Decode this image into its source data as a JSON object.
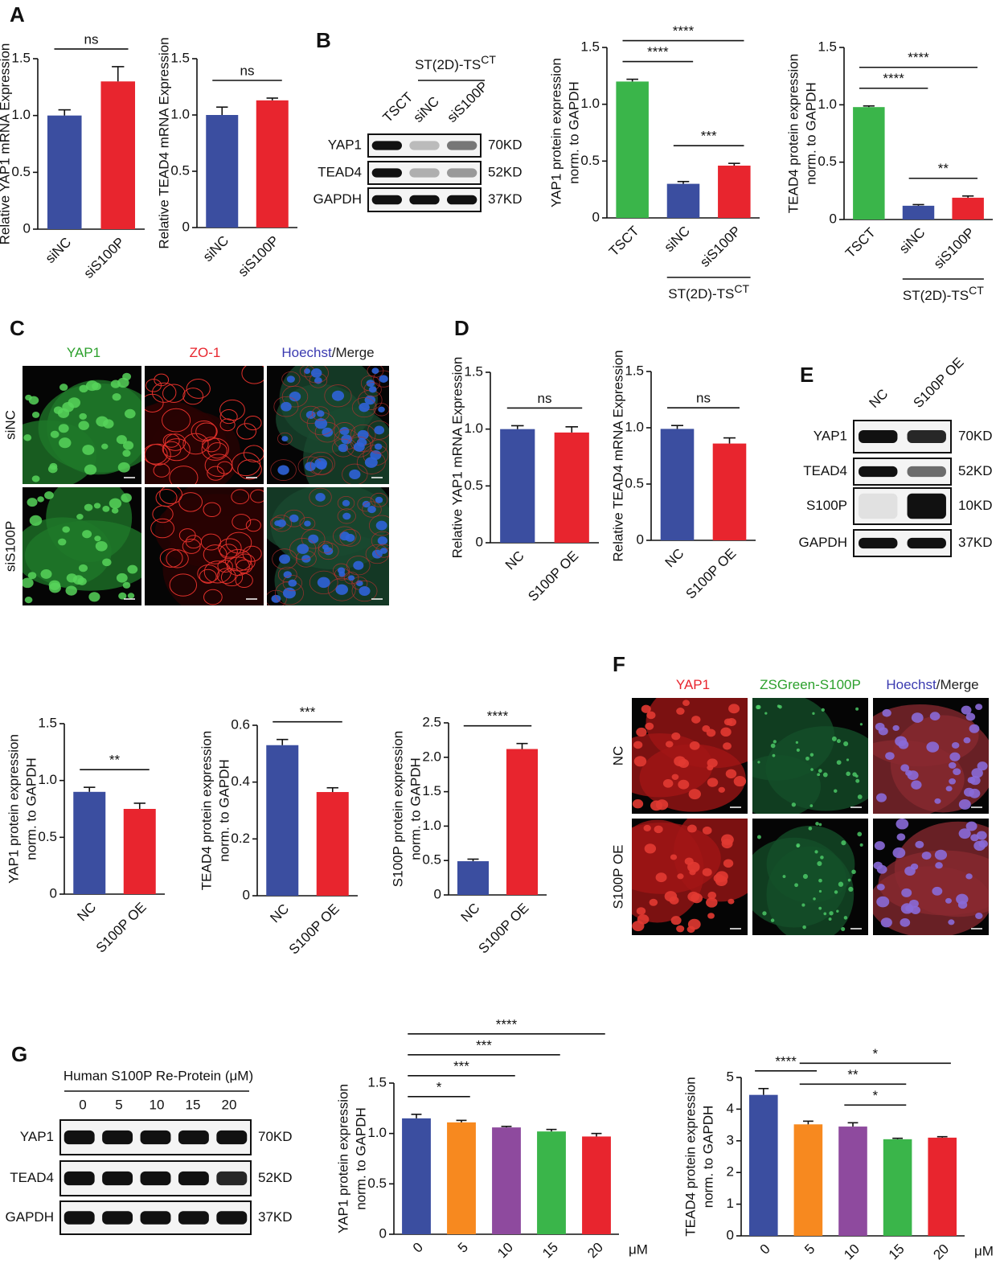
{
  "panel_labels": [
    "A",
    "B",
    "C",
    "D",
    "E",
    "F",
    "G"
  ],
  "chart_data": [
    {
      "type": "bar",
      "y_label": [
        "Relative YAP1 mRNA Expression"
      ],
      "categories": [
        "siNC",
        "siS100P"
      ],
      "values": [
        1.0,
        1.3
      ],
      "errors": [
        0.05,
        0.13
      ],
      "colors": [
        "#3b4ea0",
        "#e8252e"
      ],
      "ylim": [
        0,
        1.5
      ],
      "yticks": [
        0,
        0.5,
        {
          "value": 1,
          "label": "1.0"
        },
        1.5
      ],
      "significance": [
        {
          "pair": [
            "siNC",
            "siS100P"
          ],
          "label": "ns"
        }
      ]
    },
    {
      "type": "bar",
      "y_label": [
        "Relative TEAD4 mRNA Expression"
      ],
      "categories": [
        "siNC",
        "siS100P"
      ],
      "values": [
        1.0,
        1.13
      ],
      "errors": [
        0.07,
        0.02
      ],
      "colors": [
        "#3b4ea0",
        "#e8252e"
      ],
      "ylim": [
        0,
        1.5
      ],
      "yticks": [
        0,
        0.5,
        {
          "value": 1,
          "label": "1.0"
        },
        1.5
      ],
      "significance": [
        {
          "pair": [
            "siNC",
            "siS100P"
          ],
          "label": "ns"
        }
      ]
    },
    {
      "type": "bar",
      "y_label": [
        "YAP1 protein expression",
        "norm. to GAPDH"
      ],
      "categories": [
        "TSCT",
        "siNC",
        "siS100P"
      ],
      "values": [
        1.2,
        0.3,
        0.46
      ],
      "errors": [
        0.02,
        0.02,
        0.02
      ],
      "colors": [
        "#3ab54a",
        "#3b4ea0",
        "#e8252e"
      ],
      "ylim": [
        0,
        1.5
      ],
      "yticks": [
        0,
        0.5,
        {
          "value": 1,
          "label": "1.0"
        },
        1.5
      ],
      "significance": [
        {
          "pair": [
            "TSCT",
            "siNC"
          ],
          "label": "****"
        },
        {
          "pair": [
            "TSCT",
            "siS100P"
          ],
          "label": "****"
        },
        {
          "pair": [
            "siNC",
            "siS100P"
          ],
          "label": "***"
        }
      ],
      "group_label": {
        "text": "ST(2D)-TS",
        "sup": "CT",
        "span": [
          "siNC",
          "siS100P"
        ]
      }
    },
    {
      "type": "bar",
      "y_label": [
        "TEAD4 protein expression",
        "norm. to GAPDH"
      ],
      "categories": [
        "TSCT",
        "siNC",
        "siS100P"
      ],
      "values": [
        0.98,
        0.12,
        0.19
      ],
      "errors": [
        0.01,
        0.01,
        0.015
      ],
      "colors": [
        "#3ab54a",
        "#3b4ea0",
        "#e8252e"
      ],
      "ylim": [
        0,
        1.5
      ],
      "yticks": [
        0,
        0.5,
        {
          "value": 1,
          "label": "1.0"
        },
        1.5
      ],
      "significance": [
        {
          "pair": [
            "TSCT",
            "siNC"
          ],
          "label": "****"
        },
        {
          "pair": [
            "TSCT",
            "siS100P"
          ],
          "label": "****"
        },
        {
          "pair": [
            "siNC",
            "siS100P"
          ],
          "label": "**"
        }
      ],
      "group_label": {
        "text": "ST(2D)-TS",
        "sup": "CT",
        "span": [
          "siNC",
          "siS100P"
        ]
      }
    },
    {
      "type": "bar",
      "y_label": [
        "Relative YAP1 mRNA Expression"
      ],
      "categories": [
        "NC",
        "S100P OE"
      ],
      "values": [
        1.0,
        0.97
      ],
      "errors": [
        0.03,
        0.05
      ],
      "colors": [
        "#3b4ea0",
        "#e8252e"
      ],
      "ylim": [
        0,
        1.5
      ],
      "yticks": [
        0,
        0.5,
        {
          "value": 1,
          "label": "1.0"
        },
        1.5
      ],
      "significance": [
        {
          "pair": [
            "NC",
            "S100P OE"
          ],
          "label": "ns"
        }
      ]
    },
    {
      "type": "bar",
      "y_label": [
        "Relative TEAD4 mRNA Expression"
      ],
      "categories": [
        "NC",
        "S100P OE"
      ],
      "values": [
        0.99,
        0.86
      ],
      "errors": [
        0.03,
        0.05
      ],
      "colors": [
        "#3b4ea0",
        "#e8252e"
      ],
      "ylim": [
        0,
        1.5
      ],
      "yticks": [
        0,
        0.5,
        {
          "value": 1,
          "label": "1.0"
        },
        1.5
      ],
      "significance": [
        {
          "pair": [
            "NC",
            "S100P OE"
          ],
          "label": "ns"
        }
      ]
    },
    {
      "type": "bar",
      "y_label": [
        "YAP1 protein expression",
        "norm. to GAPDH"
      ],
      "categories": [
        "NC",
        "S100P OE"
      ],
      "values": [
        0.9,
        0.75
      ],
      "errors": [
        0.04,
        0.05
      ],
      "colors": [
        "#3b4ea0",
        "#e8252e"
      ],
      "ylim": [
        0,
        1.5
      ],
      "yticks": [
        0,
        0.5,
        {
          "value": 1,
          "label": "1.0"
        },
        1.5
      ],
      "significance": [
        {
          "pair": [
            "NC",
            "S100P OE"
          ],
          "label": "**"
        }
      ]
    },
    {
      "type": "bar",
      "y_label": [
        "TEAD4 protein expression",
        "norm. to GAPDH"
      ],
      "categories": [
        "NC",
        "S100P OE"
      ],
      "values": [
        0.53,
        0.365
      ],
      "errors": [
        0.02,
        0.015
      ],
      "colors": [
        "#3b4ea0",
        "#e8252e"
      ],
      "ylim": [
        0,
        0.6
      ],
      "yticks": [
        0,
        0.2,
        0.4,
        0.6
      ],
      "significance": [
        {
          "pair": [
            "NC",
            "S100P OE"
          ],
          "label": "***"
        }
      ]
    },
    {
      "type": "bar",
      "y_label": [
        "S100P protein expression",
        "norm. to GAPDH"
      ],
      "categories": [
        "NC",
        "S100P OE"
      ],
      "values": [
        0.49,
        2.12
      ],
      "errors": [
        0.03,
        0.08
      ],
      "colors": [
        "#3b4ea0",
        "#e8252e"
      ],
      "ylim": [
        0,
        2.5
      ],
      "yticks": [
        0,
        0.5,
        {
          "value": 1,
          "label": "1.0"
        },
        1.5,
        {
          "value": 2,
          "label": "2.0"
        },
        2.5
      ],
      "significance": [
        {
          "pair": [
            "NC",
            "S100P OE"
          ],
          "label": "****"
        }
      ]
    },
    {
      "type": "bar",
      "y_label": [
        "YAP1 protein expression",
        "norm. to GAPDH"
      ],
      "categories": [
        "0",
        "5",
        "10",
        "15",
        "20"
      ],
      "x_unit": "μM",
      "values": [
        1.15,
        1.11,
        1.06,
        1.02,
        0.97
      ],
      "errors": [
        0.04,
        0.02,
        0.01,
        0.02,
        0.03
      ],
      "colors": [
        "#3b4ea0",
        "#f7891f",
        "#8e4a9e",
        "#3ab54a",
        "#e8252e"
      ],
      "ylim": [
        0,
        1.5
      ],
      "yticks": [
        0,
        0.5,
        {
          "value": 1,
          "label": "1.0"
        },
        1.5
      ],
      "significance": [
        {
          "pair": [
            "0",
            "5"
          ],
          "label": "*"
        },
        {
          "pair": [
            "0",
            "10"
          ],
          "label": "***"
        },
        {
          "pair": [
            "0",
            "15"
          ],
          "label": "***"
        },
        {
          "pair": [
            "0",
            "20"
          ],
          "label": "****"
        }
      ]
    },
    {
      "type": "bar",
      "y_label": [
        "TEAD4 protein expression",
        "norm. to GAPDH"
      ],
      "categories": [
        "0",
        "5",
        "10",
        "15",
        "20"
      ],
      "x_unit": "μM",
      "values": [
        4.45,
        3.52,
        3.45,
        3.05,
        3.1
      ],
      "errors": [
        0.2,
        0.1,
        0.12,
        0.03,
        0.03
      ],
      "colors": [
        "#3b4ea0",
        "#f7891f",
        "#8e4a9e",
        "#3ab54a",
        "#e8252e"
      ],
      "ylim": [
        0,
        5
      ],
      "yticks": [
        0,
        1,
        2,
        3,
        4,
        5
      ],
      "significance": [
        {
          "pair": [
            "0",
            "5"
          ],
          "label": "****"
        },
        {
          "pair": [
            "5",
            "20"
          ],
          "label": "*"
        },
        {
          "pair": [
            "5",
            "15"
          ],
          "label": "**"
        },
        {
          "pair": [
            "10",
            "15"
          ],
          "label": "*"
        }
      ]
    }
  ],
  "blots": [
    {
      "group_label": {
        "text": "ST(2D)-TS",
        "sup": "CT"
      },
      "lanes": [
        "TSCT",
        "siNC",
        "siS100P"
      ],
      "rows": [
        {
          "protein": "YAP1",
          "size": "70KD"
        },
        {
          "protein": "TEAD4",
          "size": "52KD"
        },
        {
          "protein": "GAPDH",
          "size": "37KD"
        }
      ]
    },
    {
      "lanes": [
        "NC",
        "S100P OE"
      ],
      "rows": [
        {
          "protein": "YAP1",
          "size": "70KD"
        },
        {
          "protein": "TEAD4",
          "size": "52KD"
        },
        {
          "protein": "S100P",
          "size": "10KD"
        },
        {
          "protein": "GAPDH",
          "size": "37KD"
        }
      ]
    },
    {
      "title": "Human S100P Re-Protein (μM)",
      "lanes": [
        "0",
        "5",
        "10",
        "15",
        "20"
      ],
      "rows": [
        {
          "protein": "YAP1",
          "size": "70KD"
        },
        {
          "protein": "TEAD4",
          "size": "52KD"
        },
        {
          "protein": "GAPDH",
          "size": "37KD"
        }
      ]
    }
  ],
  "micrographs": [
    {
      "columns": [
        {
          "parts": [
            {
              "text": "YAP1",
              "color": "#2ca02c"
            }
          ]
        },
        {
          "parts": [
            {
              "text": "ZO-1",
              "color": "#e8252e"
            }
          ]
        },
        {
          "parts": [
            {
              "text": "Hoechst",
              "color": "#3a3ab0"
            },
            {
              "text": "/Merge",
              "color": "#222222"
            }
          ]
        }
      ],
      "rows": [
        "siNC",
        "siS100P"
      ]
    },
    {
      "columns": [
        {
          "parts": [
            {
              "text": "YAP1",
              "color": "#e8252e"
            }
          ]
        },
        {
          "parts": [
            {
              "text": "ZSGreen-S100P",
              "color": "#2ca02c"
            }
          ]
        },
        {
          "parts": [
            {
              "text": "Hoechst",
              "color": "#3a3ab0"
            },
            {
              "text": "/Merge",
              "color": "#222222"
            }
          ]
        }
      ],
      "rows": [
        "NC",
        "S100P OE"
      ]
    }
  ]
}
